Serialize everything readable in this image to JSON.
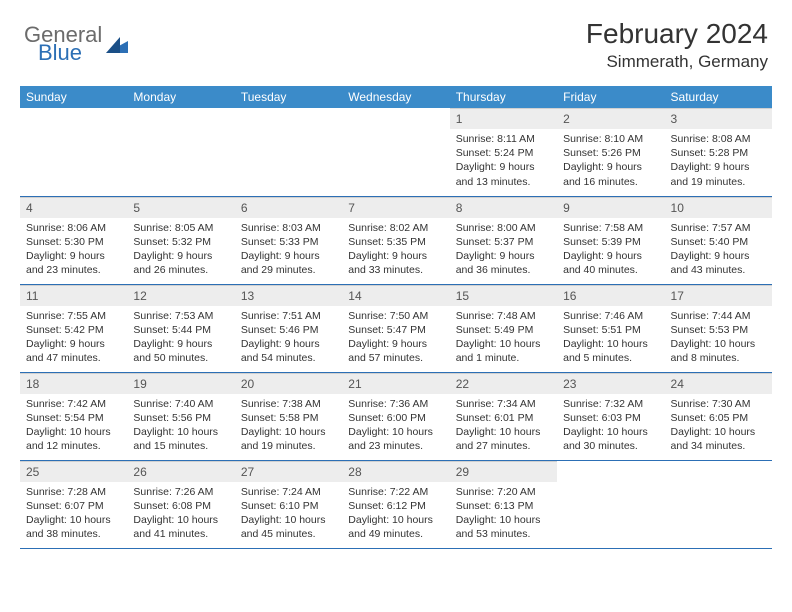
{
  "logo": {
    "general": "General",
    "blue": "Blue"
  },
  "title": "February 2024",
  "location": "Simmerath, Germany",
  "colors": {
    "header_bg": "#3b8bc9",
    "header_text": "#ffffff",
    "daynum_bg": "#ededed",
    "border": "#2c6fb5",
    "logo_gray": "#6b6b6b",
    "logo_blue": "#2c6fb5",
    "text": "#333333"
  },
  "columns": [
    "Sunday",
    "Monday",
    "Tuesday",
    "Wednesday",
    "Thursday",
    "Friday",
    "Saturday"
  ],
  "weeks": [
    [
      {
        "n": "",
        "sr": "",
        "ss": "",
        "dl": ""
      },
      {
        "n": "",
        "sr": "",
        "ss": "",
        "dl": ""
      },
      {
        "n": "",
        "sr": "",
        "ss": "",
        "dl": ""
      },
      {
        "n": "",
        "sr": "",
        "ss": "",
        "dl": ""
      },
      {
        "n": "1",
        "sr": "Sunrise: 8:11 AM",
        "ss": "Sunset: 5:24 PM",
        "dl": "Daylight: 9 hours and 13 minutes."
      },
      {
        "n": "2",
        "sr": "Sunrise: 8:10 AM",
        "ss": "Sunset: 5:26 PM",
        "dl": "Daylight: 9 hours and 16 minutes."
      },
      {
        "n": "3",
        "sr": "Sunrise: 8:08 AM",
        "ss": "Sunset: 5:28 PM",
        "dl": "Daylight: 9 hours and 19 minutes."
      }
    ],
    [
      {
        "n": "4",
        "sr": "Sunrise: 8:06 AM",
        "ss": "Sunset: 5:30 PM",
        "dl": "Daylight: 9 hours and 23 minutes."
      },
      {
        "n": "5",
        "sr": "Sunrise: 8:05 AM",
        "ss": "Sunset: 5:32 PM",
        "dl": "Daylight: 9 hours and 26 minutes."
      },
      {
        "n": "6",
        "sr": "Sunrise: 8:03 AM",
        "ss": "Sunset: 5:33 PM",
        "dl": "Daylight: 9 hours and 29 minutes."
      },
      {
        "n": "7",
        "sr": "Sunrise: 8:02 AM",
        "ss": "Sunset: 5:35 PM",
        "dl": "Daylight: 9 hours and 33 minutes."
      },
      {
        "n": "8",
        "sr": "Sunrise: 8:00 AM",
        "ss": "Sunset: 5:37 PM",
        "dl": "Daylight: 9 hours and 36 minutes."
      },
      {
        "n": "9",
        "sr": "Sunrise: 7:58 AM",
        "ss": "Sunset: 5:39 PM",
        "dl": "Daylight: 9 hours and 40 minutes."
      },
      {
        "n": "10",
        "sr": "Sunrise: 7:57 AM",
        "ss": "Sunset: 5:40 PM",
        "dl": "Daylight: 9 hours and 43 minutes."
      }
    ],
    [
      {
        "n": "11",
        "sr": "Sunrise: 7:55 AM",
        "ss": "Sunset: 5:42 PM",
        "dl": "Daylight: 9 hours and 47 minutes."
      },
      {
        "n": "12",
        "sr": "Sunrise: 7:53 AM",
        "ss": "Sunset: 5:44 PM",
        "dl": "Daylight: 9 hours and 50 minutes."
      },
      {
        "n": "13",
        "sr": "Sunrise: 7:51 AM",
        "ss": "Sunset: 5:46 PM",
        "dl": "Daylight: 9 hours and 54 minutes."
      },
      {
        "n": "14",
        "sr": "Sunrise: 7:50 AM",
        "ss": "Sunset: 5:47 PM",
        "dl": "Daylight: 9 hours and 57 minutes."
      },
      {
        "n": "15",
        "sr": "Sunrise: 7:48 AM",
        "ss": "Sunset: 5:49 PM",
        "dl": "Daylight: 10 hours and 1 minute."
      },
      {
        "n": "16",
        "sr": "Sunrise: 7:46 AM",
        "ss": "Sunset: 5:51 PM",
        "dl": "Daylight: 10 hours and 5 minutes."
      },
      {
        "n": "17",
        "sr": "Sunrise: 7:44 AM",
        "ss": "Sunset: 5:53 PM",
        "dl": "Daylight: 10 hours and 8 minutes."
      }
    ],
    [
      {
        "n": "18",
        "sr": "Sunrise: 7:42 AM",
        "ss": "Sunset: 5:54 PM",
        "dl": "Daylight: 10 hours and 12 minutes."
      },
      {
        "n": "19",
        "sr": "Sunrise: 7:40 AM",
        "ss": "Sunset: 5:56 PM",
        "dl": "Daylight: 10 hours and 15 minutes."
      },
      {
        "n": "20",
        "sr": "Sunrise: 7:38 AM",
        "ss": "Sunset: 5:58 PM",
        "dl": "Daylight: 10 hours and 19 minutes."
      },
      {
        "n": "21",
        "sr": "Sunrise: 7:36 AM",
        "ss": "Sunset: 6:00 PM",
        "dl": "Daylight: 10 hours and 23 minutes."
      },
      {
        "n": "22",
        "sr": "Sunrise: 7:34 AM",
        "ss": "Sunset: 6:01 PM",
        "dl": "Daylight: 10 hours and 27 minutes."
      },
      {
        "n": "23",
        "sr": "Sunrise: 7:32 AM",
        "ss": "Sunset: 6:03 PM",
        "dl": "Daylight: 10 hours and 30 minutes."
      },
      {
        "n": "24",
        "sr": "Sunrise: 7:30 AM",
        "ss": "Sunset: 6:05 PM",
        "dl": "Daylight: 10 hours and 34 minutes."
      }
    ],
    [
      {
        "n": "25",
        "sr": "Sunrise: 7:28 AM",
        "ss": "Sunset: 6:07 PM",
        "dl": "Daylight: 10 hours and 38 minutes."
      },
      {
        "n": "26",
        "sr": "Sunrise: 7:26 AM",
        "ss": "Sunset: 6:08 PM",
        "dl": "Daylight: 10 hours and 41 minutes."
      },
      {
        "n": "27",
        "sr": "Sunrise: 7:24 AM",
        "ss": "Sunset: 6:10 PM",
        "dl": "Daylight: 10 hours and 45 minutes."
      },
      {
        "n": "28",
        "sr": "Sunrise: 7:22 AM",
        "ss": "Sunset: 6:12 PM",
        "dl": "Daylight: 10 hours and 49 minutes."
      },
      {
        "n": "29",
        "sr": "Sunrise: 7:20 AM",
        "ss": "Sunset: 6:13 PM",
        "dl": "Daylight: 10 hours and 53 minutes."
      },
      {
        "n": "",
        "sr": "",
        "ss": "",
        "dl": ""
      },
      {
        "n": "",
        "sr": "",
        "ss": "",
        "dl": ""
      }
    ]
  ]
}
